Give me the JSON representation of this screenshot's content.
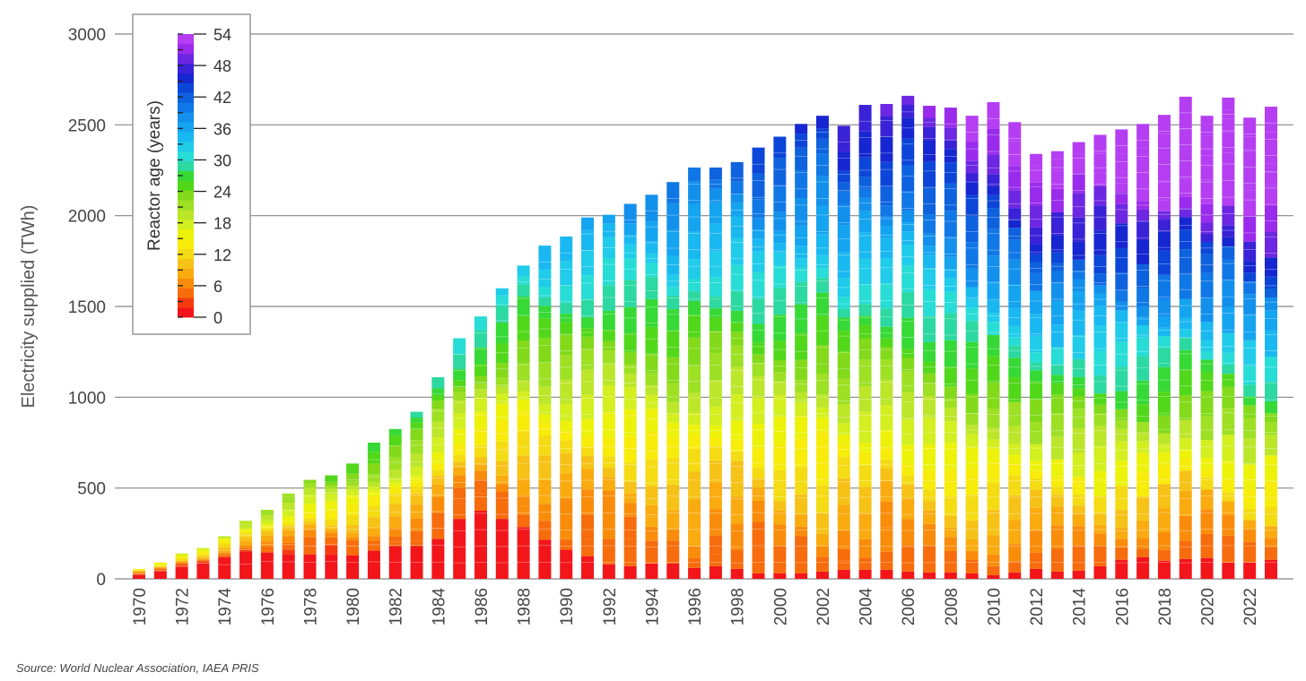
{
  "chart_data": {
    "type": "bar",
    "stacked": true,
    "xlabel": "",
    "ylabel": "Electricity supplied (TWh)",
    "ylim": [
      0,
      3000
    ],
    "yticks": [
      0,
      500,
      1000,
      1500,
      2000,
      2500,
      3000
    ],
    "grid": true,
    "years": [
      1970,
      1971,
      1972,
      1973,
      1974,
      1975,
      1976,
      1977,
      1978,
      1979,
      1980,
      1981,
      1982,
      1983,
      1984,
      1985,
      1986,
      1987,
      1988,
      1989,
      1990,
      1991,
      1992,
      1993,
      1994,
      1995,
      1996,
      1997,
      1998,
      1999,
      2000,
      2001,
      2002,
      2003,
      2004,
      2005,
      2006,
      2007,
      2008,
      2009,
      2010,
      2011,
      2012,
      2013,
      2014,
      2015,
      2016,
      2017,
      2018,
      2019,
      2020,
      2021,
      2022,
      2023
    ],
    "xtick_labels": [
      "1970",
      "1972",
      "1974",
      "1976",
      "1978",
      "1980",
      "1982",
      "1984",
      "1986",
      "1988",
      "1990",
      "1992",
      "1994",
      "1996",
      "1998",
      "2000",
      "2002",
      "2004",
      "2006",
      "2008",
      "2010",
      "2012",
      "2014",
      "2016",
      "2018",
      "2020",
      "2022"
    ],
    "totals": [
      55,
      90,
      140,
      170,
      235,
      320,
      380,
      470,
      545,
      570,
      635,
      750,
      825,
      920,
      1110,
      1325,
      1445,
      1600,
      1725,
      1835,
      1885,
      1990,
      2005,
      2065,
      2115,
      2185,
      2265,
      2265,
      2295,
      2375,
      2435,
      2505,
      2550,
      2495,
      2610,
      2615,
      2660,
      2605,
      2595,
      2550,
      2625,
      2515,
      2340,
      2355,
      2405,
      2445,
      2475,
      2505,
      2555,
      2655,
      2550,
      2650,
      2540,
      2600
    ],
    "bottom_band": [
      20,
      40,
      65,
      85,
      120,
      150,
      145,
      135,
      135,
      135,
      130,
      155,
      180,
      180,
      220,
      330,
      375,
      330,
      285,
      215,
      160,
      125,
      80,
      70,
      85,
      85,
      60,
      70,
      55,
      30,
      30,
      30,
      40,
      50,
      50,
      50,
      40,
      35,
      35,
      30,
      20,
      35,
      55,
      40,
      45,
      70,
      105,
      120,
      100,
      110,
      115,
      90,
      90,
      105
    ],
    "legend": {
      "title": "Reactor age (years)",
      "tick_labels": [
        "0",
        "6",
        "12",
        "18",
        "24",
        "30",
        "36",
        "42",
        "48",
        "54"
      ],
      "age_max": 54
    },
    "age_colors": [
      "#f2151a",
      "#f53a10",
      "#f76c0c",
      "#f98d0b",
      "#f9ab10",
      "#f6c217",
      "#f4db14",
      "#f7ec0a",
      "#edf20a",
      "#d3ef20",
      "#bce62a",
      "#9ee024",
      "#82da1a",
      "#52d81a",
      "#36d936",
      "#2cd9a0",
      "#27ddd6",
      "#20ccea",
      "#1ab8f0",
      "#14a4f0",
      "#1290ec",
      "#1078e6",
      "#0e62de",
      "#0c46d8",
      "#1626d0",
      "#3a22d6",
      "#6d27e2",
      "#9a2bec",
      "#b53ef2"
    ],
    "source": "Source: World Nuclear Association, IAEA PRIS"
  }
}
